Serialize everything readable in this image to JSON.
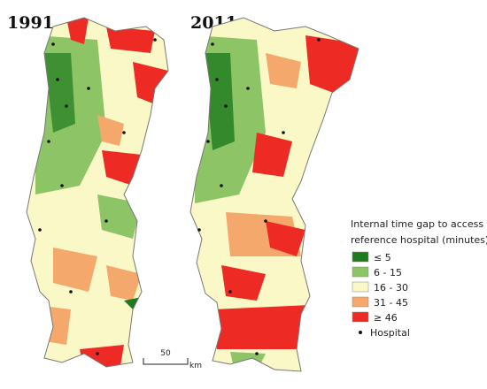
{
  "maps": [
    {
      "year": "1991"
    },
    {
      "year": "2011"
    }
  ],
  "legend": {
    "title": [
      "Internal time gap to access the",
      "reference hospital (minutes)"
    ],
    "items": [
      {
        "label": "≤ 5",
        "color": "#1e7a1e"
      },
      {
        "label": "6 - 15",
        "color": "#8cc466"
      },
      {
        "label": "16 - 30",
        "color": "#fbf8c8"
      },
      {
        "label": "31 - 45",
        "color": "#f4a86c"
      },
      {
        "label": "≥ 46",
        "color": "#ee2a24"
      }
    ],
    "hospital": "Hospital"
  },
  "scale": {
    "value": "50",
    "unit": "km"
  }
}
